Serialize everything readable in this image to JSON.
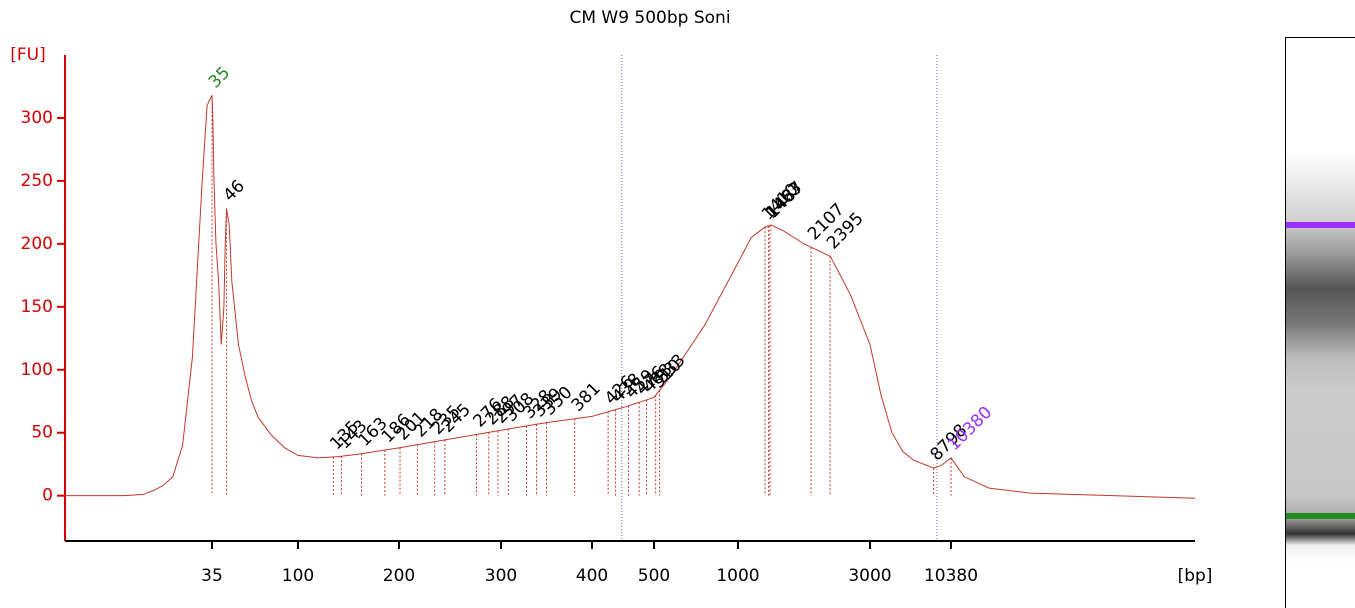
{
  "chart_data": {
    "type": "line",
    "title": "CM W9 500bp Soni",
    "x_label": "[bp]",
    "y_label": "[FU]",
    "x": [
      20,
      26,
      28,
      29,
      30,
      31,
      32,
      33,
      34,
      34.5,
      35,
      35.6,
      36.5,
      38,
      40,
      42,
      44,
      45,
      46,
      48,
      50,
      55,
      60,
      65,
      70,
      80,
      90,
      100,
      120,
      140,
      160,
      200,
      250,
      300,
      350,
      400,
      450,
      500,
      600,
      700,
      800,
      900,
      1000,
      1200,
      1400,
      1500,
      1700,
      2000,
      2400,
      2700,
      3000,
      4000,
      5000,
      6000,
      7000,
      8798,
      9500,
      10380,
      12000,
      15000,
      20000,
      30000,
      40000
    ],
    "series": [
      {
        "color": "#c0392b",
        "values": [
          0,
          0,
          1,
          4,
          8,
          15,
          40,
          110,
          250,
          310,
          318,
          300,
          250,
          200,
          170,
          120,
          150,
          200,
          228,
          215,
          170,
          120,
          95,
          75,
          62,
          48,
          38,
          32,
          30,
          31,
          33,
          38,
          45,
          52,
          58,
          63,
          70,
          78,
          95,
          115,
          135,
          160,
          185,
          205,
          213,
          215,
          210,
          200,
          190,
          160,
          120,
          80,
          50,
          35,
          28,
          22,
          24,
          30,
          15,
          6,
          2,
          0,
          -2
        ]
      }
    ],
    "peaks": [
      35,
      46,
      135,
      143,
      163,
      186,
      201,
      218,
      235,
      245,
      276,
      288,
      297,
      308,
      328,
      339,
      350,
      381,
      426,
      438,
      459,
      476,
      488,
      510,
      533,
      1410,
      1463,
      1487,
      2107,
      2395,
      8798,
      10380
    ],
    "peak_color": "#000000",
    "lower_marker_color": "#228b22",
    "upper_marker_color": "#9b30ff",
    "region_bounds": [
      448,
      9100
    ],
    "xlim": [
      20,
      40000
    ],
    "xticks": [
      35,
      100,
      200,
      300,
      400,
      500,
      1000,
      3000,
      10380
    ],
    "ylim": [
      -36,
      350
    ],
    "yticks": [
      0,
      50,
      100,
      150,
      200,
      250,
      300
    ],
    "axis_color": "#d40000",
    "grid": false
  }
}
